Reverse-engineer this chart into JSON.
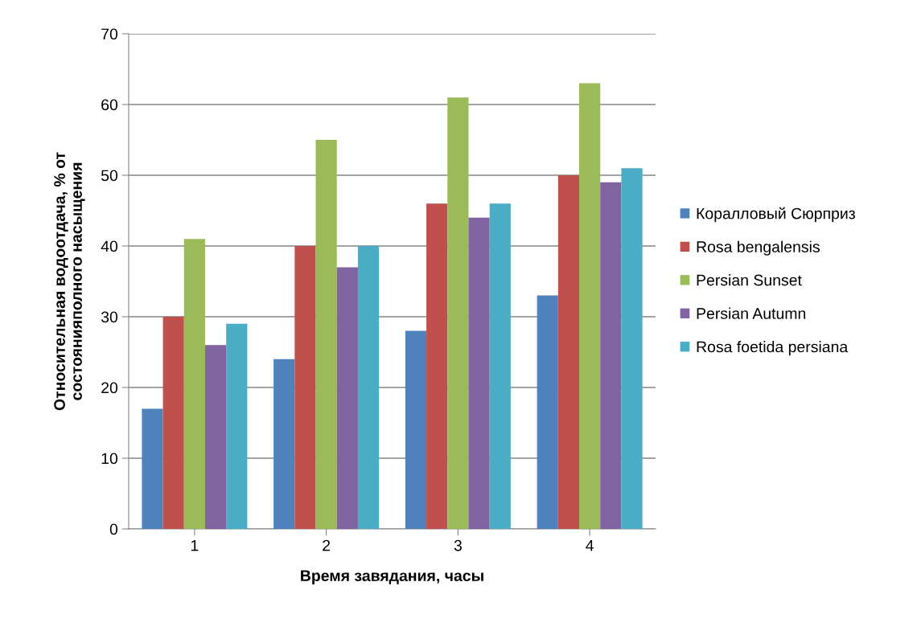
{
  "chart_data": {
    "type": "bar",
    "xlabel": "Время завядания, часы",
    "ylabel": "Относительная водоотдача, % от\nсостоянияполного насыщения",
    "categories": [
      "1",
      "2",
      "3",
      "4"
    ],
    "series": [
      {
        "name": "Коралловый Сюрприз",
        "color": "#4f81bd",
        "values": [
          17,
          24,
          28,
          33
        ]
      },
      {
        "name": "Rosa bengalensis",
        "color": "#c0504d",
        "values": [
          30,
          40,
          46,
          50
        ]
      },
      {
        "name": "Persian Sunset",
        "color": "#9bbb59",
        "values": [
          41,
          55,
          61,
          63
        ]
      },
      {
        "name": "Persian Autumn",
        "color": "#8064a2",
        "values": [
          26,
          37,
          44,
          49
        ]
      },
      {
        "name": "Rosa foetida persiana",
        "color": "#4bacc6",
        "values": [
          29,
          40,
          46,
          51
        ]
      }
    ],
    "ylim": [
      0,
      70
    ],
    "yticks": [
      0,
      10,
      20,
      30,
      40,
      50,
      60,
      70
    ],
    "grid": "y",
    "legend": "right"
  }
}
